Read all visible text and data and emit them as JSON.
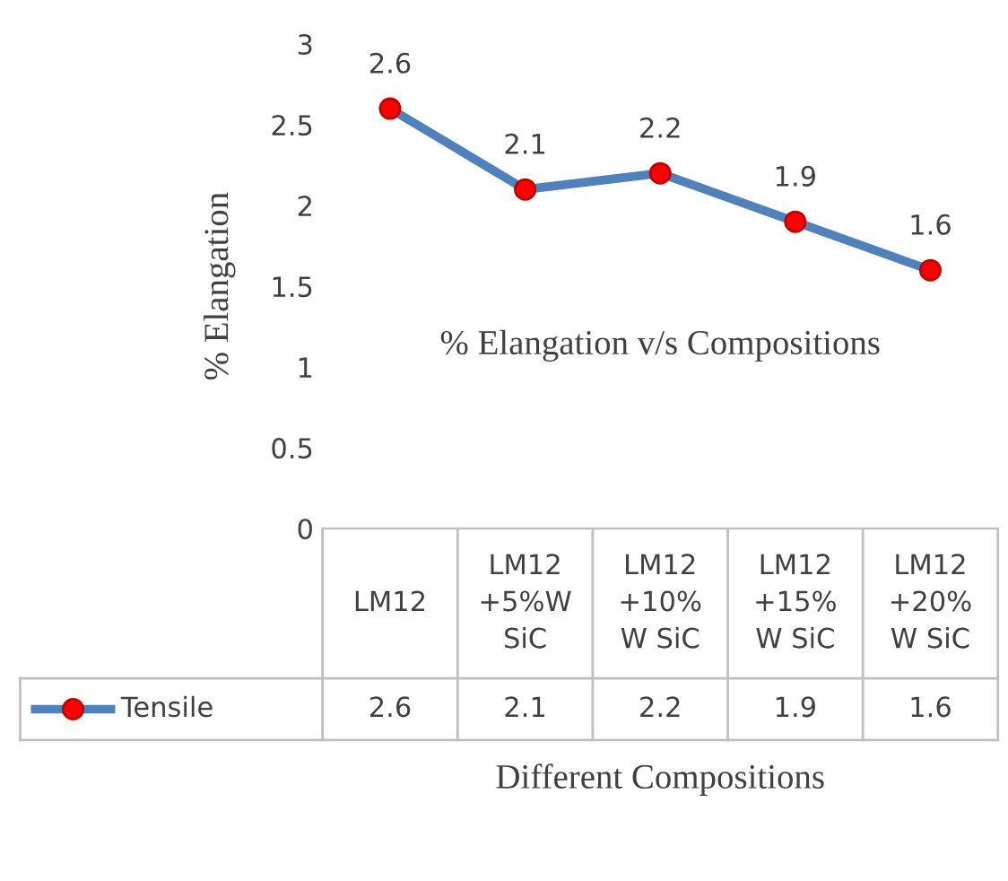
{
  "chart_data": {
    "type": "line",
    "title": "% Elangation v/s Compositions",
    "xlabel": "Different Compositions",
    "ylabel": "% Elangation",
    "categories": [
      "LM12",
      "LM12\n+5%W\nSiC",
      "LM12\n+10%\nW SiC",
      "LM12\n+15%\nW SiC",
      "LM12\n+20%\nW SiC"
    ],
    "series": [
      {
        "name": "Tensile",
        "color": "#4f81bd",
        "values": [
          2.6,
          2.1,
          2.2,
          1.9,
          1.6
        ]
      }
    ],
    "annotations": [
      {
        "text": "2.6",
        "x": "LM12",
        "y": 2.6
      },
      {
        "text": "2.1",
        "x": "LM12\n+5%W\nSiC",
        "y": 2.1
      },
      {
        "text": "2.2",
        "x": "LM12\n+10%\nW SiC",
        "y": 2.2
      },
      {
        "text": "1.9",
        "x": "LM12\n+15%\nW SiC",
        "y": 1.9
      },
      {
        "text": "1.6",
        "x": "LM12\n+20%\nW SiC",
        "y": 1.6
      }
    ],
    "ylim": [
      0,
      3
    ],
    "yticks": [
      0,
      0.5,
      1,
      1.5,
      2,
      2.5,
      3
    ],
    "marker": "circle",
    "data_labels": true,
    "legend": "bottom",
    "grid": false
  }
}
